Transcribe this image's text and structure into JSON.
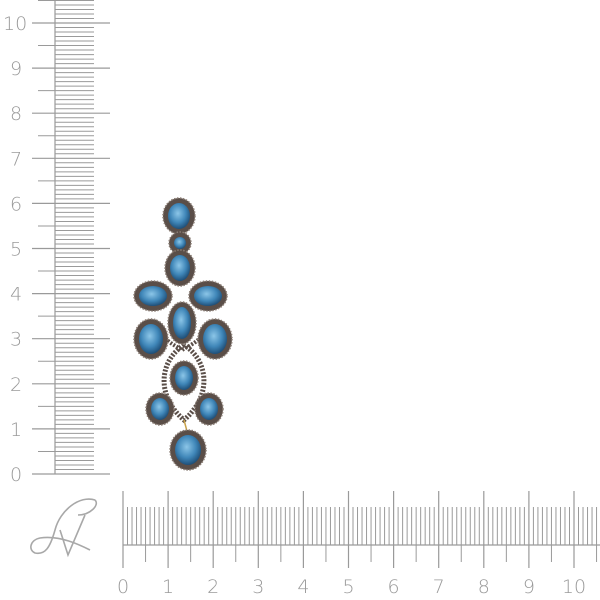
{
  "vertical_ruler": {
    "labels": [
      "0",
      "1",
      "2",
      "3",
      "4",
      "5",
      "6",
      "7",
      "8",
      "9",
      "10"
    ],
    "unit_divisions": 10
  },
  "horizontal_ruler": {
    "labels": [
      "0",
      "1",
      "2",
      "3",
      "4",
      "5",
      "6",
      "7",
      "8",
      "9",
      "10"
    ],
    "unit_divisions": 10
  },
  "logo": {
    "text": "JV"
  },
  "product": {
    "description_icon": "chandelier-earring-blue-topaz",
    "stone_color": "#3f86b8",
    "halo_color": "#5a4e48"
  },
  "colors": {
    "ruler": "#9a9a9a",
    "background": "#ffffff"
  }
}
